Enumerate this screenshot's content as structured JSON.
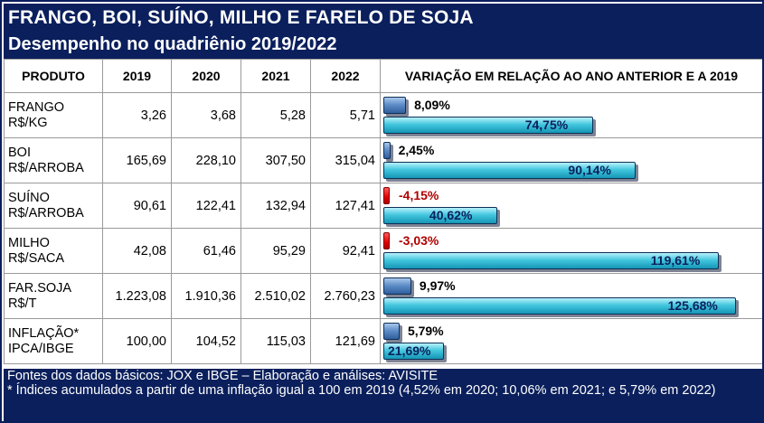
{
  "title": "FRANGO, BOI, SUÍNO, MILHO E FARELO DE SOJA",
  "subtitle": "Desempenho no quadriênio 2019/2022",
  "headers": {
    "produto": "PRODUTO",
    "y2019": "2019",
    "y2020": "2020",
    "y2021": "2021",
    "y2022": "2022",
    "variacao": "VARIAÇÃO EM RELAÇÃO AO ANO ANTERIOR E A 2019"
  },
  "rows": [
    {
      "name1": "FRANGO",
      "name2": "R$/KG",
      "v2019": "3,26",
      "v2020": "3,68",
      "v2021": "5,28",
      "v2022": "5,71",
      "var_prev": 8.09,
      "var_prev_label": "8,09%",
      "var_2019": 74.75,
      "var_2019_label": "74,75%"
    },
    {
      "name1": "BOI",
      "name2": "R$/ARROBA",
      "v2019": "165,69",
      "v2020": "228,10",
      "v2021": "307,50",
      "v2022": "315,04",
      "var_prev": 2.45,
      "var_prev_label": "2,45%",
      "var_2019": 90.14,
      "var_2019_label": "90,14%"
    },
    {
      "name1": "SUÍNO",
      "name2": "R$/ARROBA",
      "v2019": "90,61",
      "v2020": "122,41",
      "v2021": "132,94",
      "v2022": "127,41",
      "var_prev": -4.15,
      "var_prev_label": "-4,15%",
      "var_2019": 40.62,
      "var_2019_label": "40,62%"
    },
    {
      "name1": "MILHO",
      "name2": "R$/SACA",
      "v2019": "42,08",
      "v2020": "61,46",
      "v2021": "95,29",
      "v2022": "92,41",
      "var_prev": -3.03,
      "var_prev_label": "-3,03%",
      "var_2019": 119.61,
      "var_2019_label": "119,61%"
    },
    {
      "name1": "FAR.SOJA",
      "name2": "R$/T",
      "v2019": "1.223,08",
      "v2020": "1.910,36",
      "v2021": "2.510,02",
      "v2022": "2.760,23",
      "var_prev": 9.97,
      "var_prev_label": "9,97%",
      "var_2019": 125.68,
      "var_2019_label": "125,68%"
    },
    {
      "name1": "INFLAÇÃO*",
      "name2": "IPCA/IBGE",
      "v2019": "100,00",
      "v2020": "104,52",
      "v2021": "115,03",
      "v2022": "121,69",
      "var_prev": 5.79,
      "var_prev_label": "5,79%",
      "var_2019": 21.69,
      "var_2019_label": "21,69%"
    }
  ],
  "footer": {
    "line1": "Fontes dos dados básicos: JOX e IBGE – Elaboração e análises: AVISITE",
    "line2": "* Índices acumulados a partir de uma inflação igual a 100 em 2019 (4,52% em 2020; 10,06% em 2021; e 5,79% em 2022)"
  },
  "colors": {
    "header_bg": "#0a1f5c",
    "bar_prev": "#5f8ec8",
    "bar_2019": "#43c7de",
    "bar_negative": "#e00000",
    "negative_text": "#b00000"
  }
}
